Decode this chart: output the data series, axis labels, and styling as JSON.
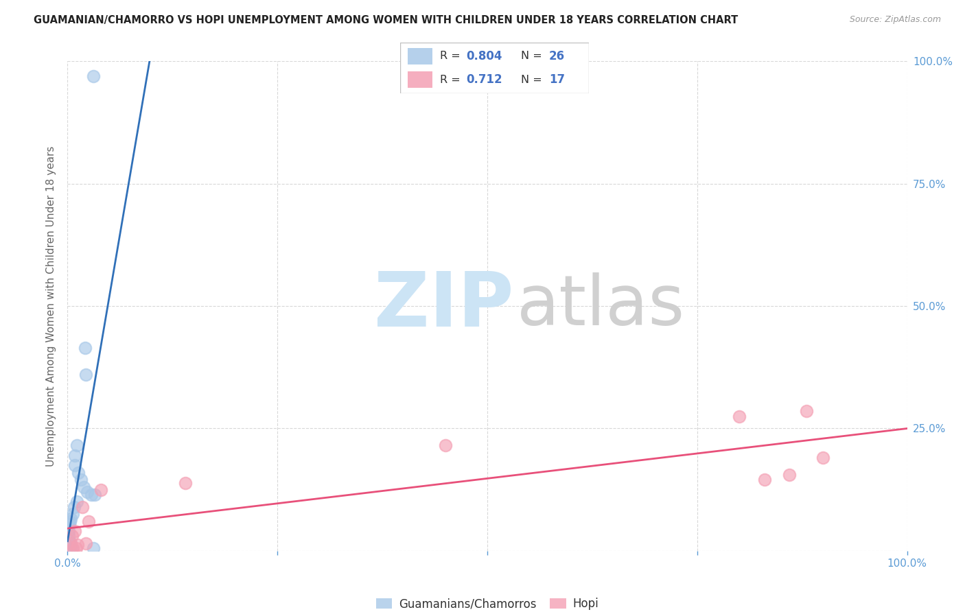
{
  "title": "GUAMANIAN/CHAMORRO VS HOPI UNEMPLOYMENT AMONG WOMEN WITH CHILDREN UNDER 18 YEARS CORRELATION CHART",
  "source": "Source: ZipAtlas.com",
  "ylabel": "Unemployment Among Women with Children Under 18 years",
  "xlim": [
    0,
    1.0
  ],
  "ylim": [
    0,
    1.0
  ],
  "xticks": [
    0.0,
    0.25,
    0.5,
    0.75,
    1.0
  ],
  "xticklabels": [
    "0.0%",
    "",
    "",
    "",
    "100.0%"
  ],
  "yticks": [
    0.0,
    0.25,
    0.5,
    0.75,
    1.0
  ],
  "ytick_labels_right": [
    "",
    "25.0%",
    "50.0%",
    "75.0%",
    "100.0%"
  ],
  "blue_R": "0.804",
  "blue_N": "26",
  "pink_R": "0.712",
  "pink_N": "17",
  "blue_scatter_color": "#a8c8e8",
  "pink_scatter_color": "#f4a0b4",
  "blue_line_color": "#3070b8",
  "pink_line_color": "#e8507a",
  "legend_blue_label": "Guamanians/Chamorros",
  "legend_pink_label": "Hopi",
  "accent_color": "#4472c4",
  "tick_color": "#5b9bd5",
  "grid_color": "#d8d8d8",
  "title_color": "#222222",
  "label_color": "#666666",
  "blue_x": [
    0.031,
    0.021,
    0.022,
    0.011,
    0.009,
    0.009,
    0.013,
    0.016,
    0.019,
    0.023,
    0.028,
    0.032,
    0.011,
    0.008,
    0.006,
    0.004,
    0.003,
    0.002,
    0.001,
    0.001,
    0.002,
    0.003,
    0.003,
    0.004,
    0.005,
    0.031
  ],
  "blue_y": [
    0.97,
    0.415,
    0.36,
    0.215,
    0.195,
    0.175,
    0.16,
    0.145,
    0.13,
    0.12,
    0.115,
    0.115,
    0.1,
    0.09,
    0.075,
    0.065,
    0.06,
    0.055,
    0.04,
    0.03,
    0.02,
    0.018,
    0.015,
    0.01,
    0.005,
    0.005
  ],
  "pink_x": [
    0.004,
    0.006,
    0.01,
    0.012,
    0.022,
    0.04,
    0.14,
    0.45,
    0.8,
    0.83,
    0.86,
    0.88,
    0.9,
    0.005,
    0.009,
    0.018,
    0.025
  ],
  "pink_y": [
    0.015,
    0.005,
    0.005,
    0.012,
    0.015,
    0.125,
    0.138,
    0.215,
    0.275,
    0.145,
    0.155,
    0.285,
    0.19,
    0.03,
    0.04,
    0.09,
    0.06
  ],
  "watermark_zip_color": "#cce4f5",
  "watermark_atlas_color": "#d0d0d0"
}
